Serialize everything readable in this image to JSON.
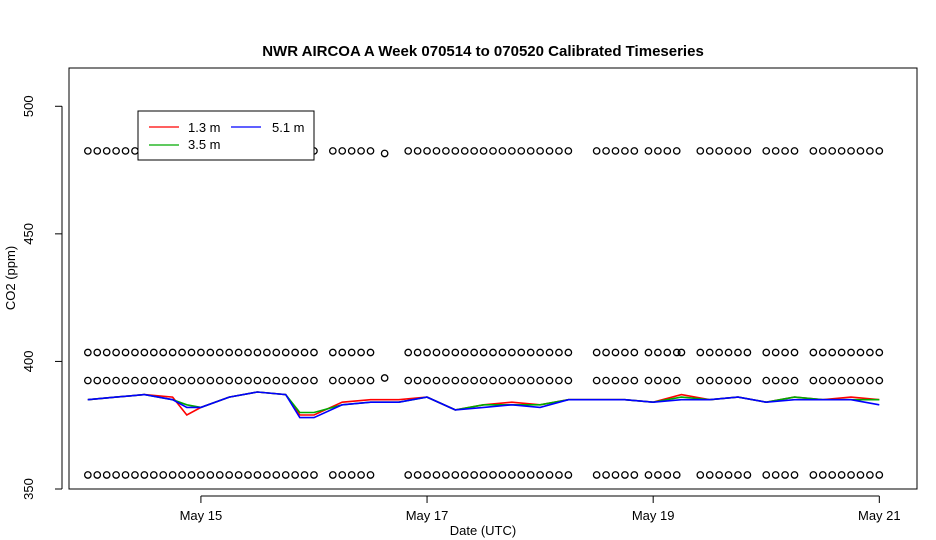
{
  "chart_data": {
    "type": "line",
    "title": "NWR AIRCOA A  Week 070514 to 070520  Calibrated Timeseries",
    "xlabel": "Date (UTC)",
    "ylabel": "CO2 (ppm)",
    "xlim": [
      "2007-05-13T20:00",
      "2007-05-21T08:00"
    ],
    "ylim": [
      350,
      515
    ],
    "x_ticks": [
      {
        "date": "2007-05-15",
        "label": "May 15"
      },
      {
        "date": "2007-05-17",
        "label": "May 17"
      },
      {
        "date": "2007-05-19",
        "label": "May 19"
      },
      {
        "date": "2007-05-21",
        "label": "May 21"
      }
    ],
    "y_ticks": [
      350,
      400,
      450,
      500
    ],
    "grid": false,
    "legend": {
      "placement": "top-left",
      "entries": [
        "1.3 m",
        "3.5 m",
        "5.1 m"
      ]
    },
    "colors": {
      "1.3 m": "#ff0000",
      "3.5 m": "#00aa00",
      "5.1 m": "#0000ff",
      "calibration": "#000000"
    },
    "series": [
      {
        "name": "1.3 m",
        "x": [
          "2007-05-14T00:00",
          "2007-05-14T06:00",
          "2007-05-14T12:00",
          "2007-05-14T18:00",
          "2007-05-14T21:00",
          "2007-05-15T00:00",
          "2007-05-15T06:00",
          "2007-05-15T12:00",
          "2007-05-15T18:00",
          "2007-05-15T21:00",
          "2007-05-16T00:00",
          "2007-05-16T06:00",
          "2007-05-16T12:00",
          "2007-05-16T18:00",
          "2007-05-17T00:00",
          "2007-05-17T06:00",
          "2007-05-17T12:00",
          "2007-05-17T18:00",
          "2007-05-18T00:00",
          "2007-05-18T06:00",
          "2007-05-18T12:00",
          "2007-05-18T18:00",
          "2007-05-19T00:00",
          "2007-05-19T06:00",
          "2007-05-19T12:00",
          "2007-05-19T18:00",
          "2007-05-20T00:00",
          "2007-05-20T06:00",
          "2007-05-20T12:00",
          "2007-05-20T18:00",
          "2007-05-21T00:00"
        ],
        "values": [
          385,
          386,
          387,
          386,
          379,
          382,
          386,
          388,
          387,
          379,
          379,
          384,
          385,
          385,
          386,
          381,
          383,
          384,
          383,
          385,
          385,
          385,
          384,
          387,
          385,
          386,
          384,
          386,
          385,
          386,
          385
        ]
      },
      {
        "name": "3.5 m",
        "x": [
          "2007-05-14T00:00",
          "2007-05-14T06:00",
          "2007-05-14T12:00",
          "2007-05-14T18:00",
          "2007-05-14T21:00",
          "2007-05-15T00:00",
          "2007-05-15T06:00",
          "2007-05-15T12:00",
          "2007-05-15T18:00",
          "2007-05-15T21:00",
          "2007-05-16T00:00",
          "2007-05-16T06:00",
          "2007-05-16T12:00",
          "2007-05-16T18:00",
          "2007-05-17T00:00",
          "2007-05-17T06:00",
          "2007-05-17T12:00",
          "2007-05-17T18:00",
          "2007-05-18T00:00",
          "2007-05-18T06:00",
          "2007-05-18T12:00",
          "2007-05-18T18:00",
          "2007-05-19T00:00",
          "2007-05-19T06:00",
          "2007-05-19T12:00",
          "2007-05-19T18:00",
          "2007-05-20T00:00",
          "2007-05-20T06:00",
          "2007-05-20T12:00",
          "2007-05-20T18:00",
          "2007-05-21T00:00"
        ],
        "values": [
          385,
          386,
          387,
          385,
          383,
          382,
          386,
          388,
          387,
          380,
          380,
          383,
          384,
          384,
          386,
          381,
          383,
          383,
          383,
          385,
          385,
          385,
          384,
          386,
          385,
          386,
          384,
          386,
          385,
          385,
          385
        ]
      },
      {
        "name": "5.1 m",
        "x": [
          "2007-05-14T00:00",
          "2007-05-14T06:00",
          "2007-05-14T12:00",
          "2007-05-14T18:00",
          "2007-05-14T21:00",
          "2007-05-15T00:00",
          "2007-05-15T06:00",
          "2007-05-15T12:00",
          "2007-05-15T18:00",
          "2007-05-15T21:00",
          "2007-05-16T00:00",
          "2007-05-16T06:00",
          "2007-05-16T12:00",
          "2007-05-16T18:00",
          "2007-05-17T00:00",
          "2007-05-17T06:00",
          "2007-05-17T12:00",
          "2007-05-17T18:00",
          "2007-05-18T00:00",
          "2007-05-18T06:00",
          "2007-05-18T12:00",
          "2007-05-18T18:00",
          "2007-05-19T00:00",
          "2007-05-19T06:00",
          "2007-05-19T12:00",
          "2007-05-19T18:00",
          "2007-05-20T00:00",
          "2007-05-20T06:00",
          "2007-05-20T12:00",
          "2007-05-20T18:00",
          "2007-05-21T00:00"
        ],
        "values": [
          385,
          386,
          387,
          385,
          382,
          382,
          386,
          388,
          387,
          378,
          378,
          383,
          384,
          384,
          386,
          381,
          382,
          383,
          382,
          385,
          385,
          385,
          384,
          385,
          385,
          386,
          384,
          385,
          385,
          385,
          383
        ]
      },
      {
        "name": "",
        "type": "scatter",
        "levels": [
          355.5,
          392.5,
          403.5,
          482.5
        ],
        "x_day_ranges": [
          [
            "2007-05-14T00:00",
            "2007-05-14T23:00"
          ],
          [
            "2007-05-15T00:00",
            "2007-05-16T00:00"
          ],
          [
            "2007-05-16T04:00",
            "2007-05-16T12:00"
          ],
          [
            "2007-05-16T20:00",
            "2007-05-18T06:00"
          ],
          [
            "2007-05-18T12:00",
            "2007-05-18T20:00"
          ],
          [
            "2007-05-18T23:00",
            "2007-05-19T06:00"
          ],
          [
            "2007-05-19T10:00",
            "2007-05-19T20:00"
          ],
          [
            "2007-05-20T00:00",
            "2007-05-20T06:00"
          ],
          [
            "2007-05-20T10:00",
            "2007-05-21T00:00"
          ]
        ],
        "extra_points": [
          {
            "x": "2007-05-16T15:00",
            "y": 481.5
          },
          {
            "x": "2007-05-16T15:00",
            "y": 393.5
          },
          {
            "x": "2007-05-19T06:00",
            "y": 403.5
          }
        ]
      }
    ]
  }
}
